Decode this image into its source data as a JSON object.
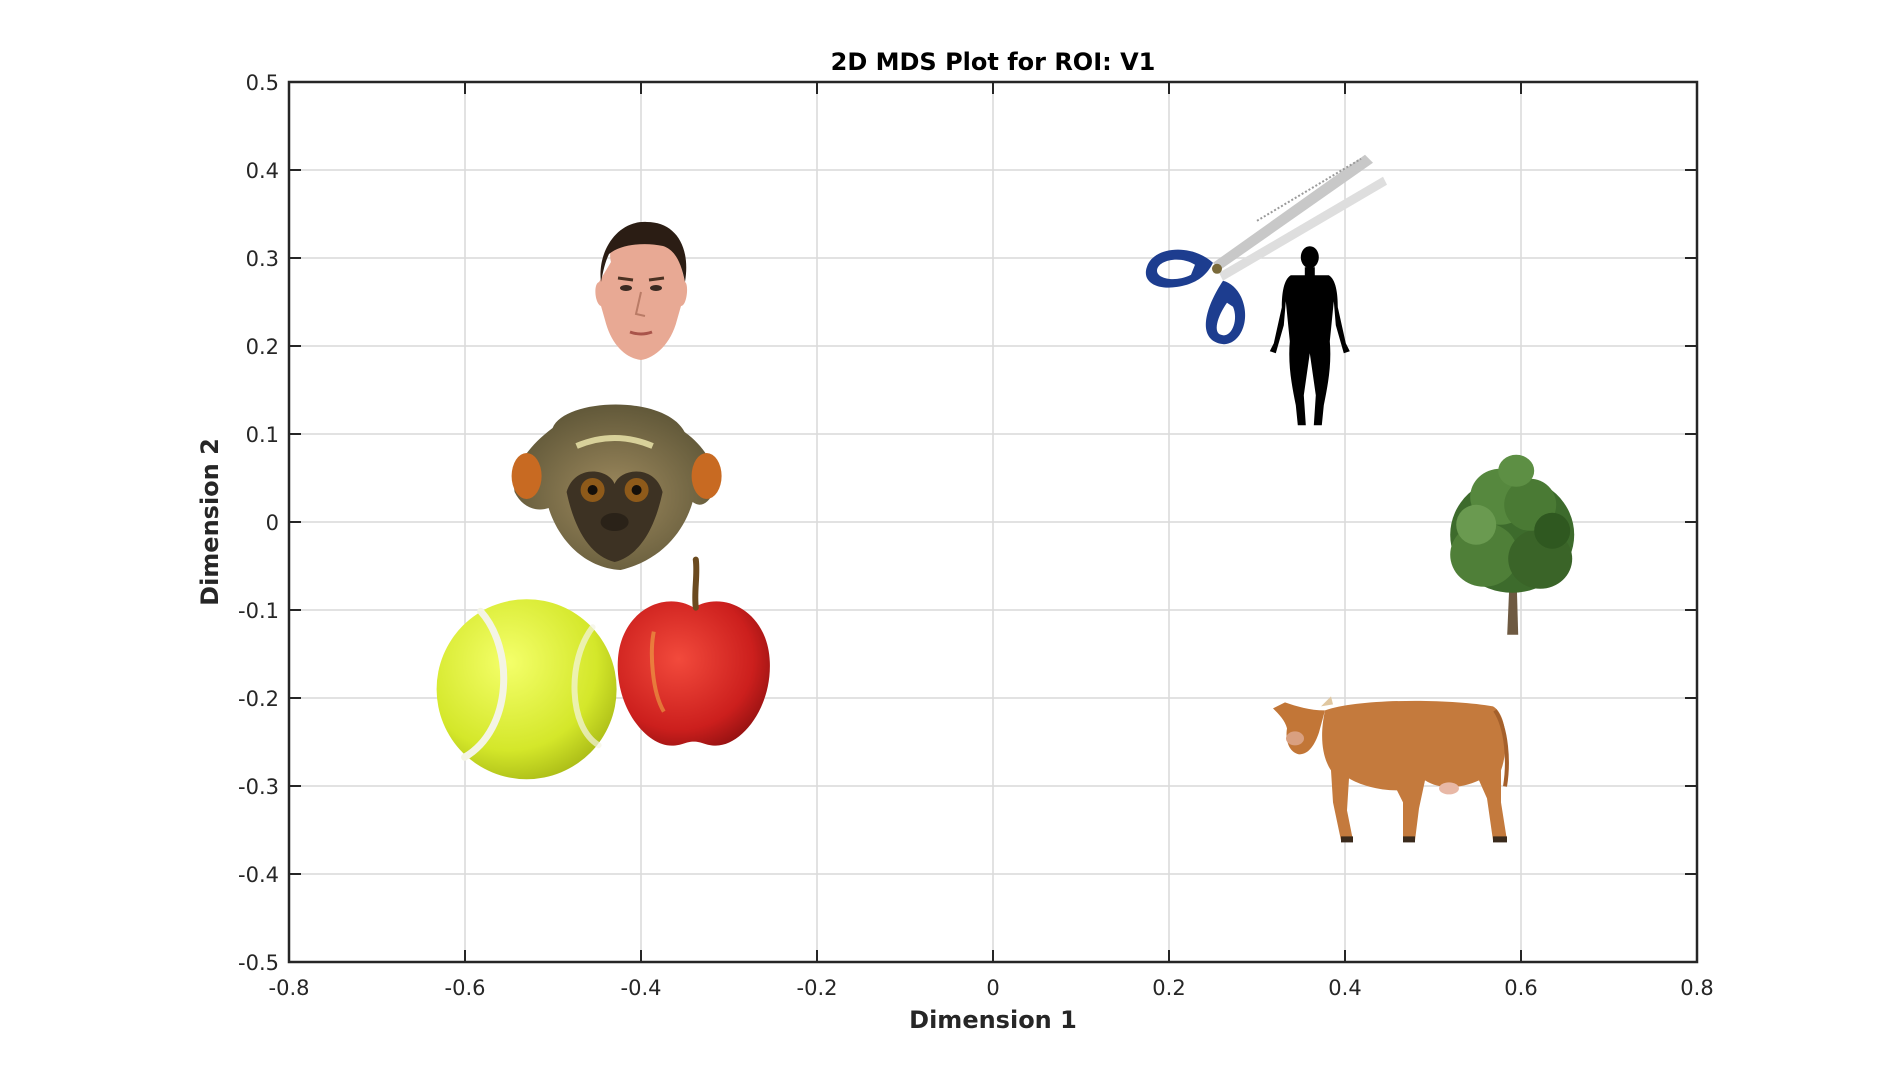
{
  "chart_data": {
    "type": "scatter",
    "title": "2D MDS Plot for ROI: V1",
    "xlabel": "Dimension 1",
    "ylabel": "Dimension 2",
    "xlim": [
      -0.8,
      0.8
    ],
    "ylim": [
      -0.5,
      0.5
    ],
    "xticks": [
      -0.8,
      -0.6,
      -0.4,
      -0.2,
      0,
      0.2,
      0.4,
      0.6,
      0.8
    ],
    "yticks": [
      0.5,
      0.4,
      0.3,
      0.2,
      0.1,
      0,
      -0.1,
      -0.2,
      -0.3,
      -0.4,
      -0.5
    ],
    "xtick_labels": [
      "-0.8",
      "-0.6",
      "-0.4",
      "-0.2",
      "0",
      "0.2",
      "0.4",
      "0.6",
      "0.8"
    ],
    "ytick_labels": [
      "0.5",
      "0.4",
      "0.3",
      "0.2",
      "0.1",
      "0",
      "-0.1",
      "-0.2",
      "-0.3",
      "-0.4",
      "-0.5"
    ],
    "grid": true,
    "points": [
      {
        "icon": "human-face-icon",
        "x": -0.4,
        "y": 0.25
      },
      {
        "icon": "monkey-face-icon",
        "x": -0.43,
        "y": 0.05
      },
      {
        "icon": "tennis-ball-icon",
        "x": -0.53,
        "y": -0.19
      },
      {
        "icon": "apple-icon",
        "x": -0.34,
        "y": -0.17
      },
      {
        "icon": "scissors-icon",
        "x": 0.3,
        "y": 0.29
      },
      {
        "icon": "human-body-icon",
        "x": 0.36,
        "y": 0.11
      },
      {
        "icon": "tree-icon",
        "x": 0.59,
        "y": -0.06
      },
      {
        "icon": "cow-icon",
        "x": 0.45,
        "y": -0.28
      }
    ]
  }
}
